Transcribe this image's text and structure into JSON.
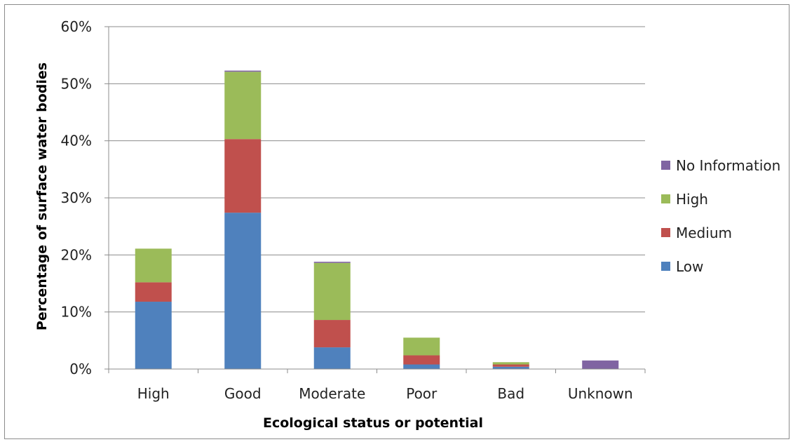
{
  "chart_data": {
    "type": "bar",
    "stacked": true,
    "title": "",
    "xlabel": "Ecological status or potential",
    "ylabel": "Percentage of surface water bodies",
    "categories": [
      "High",
      "Good",
      "Moderate",
      "Poor",
      "Bad",
      "Unknown"
    ],
    "ylim": [
      0,
      60
    ],
    "yticks": [
      0,
      10,
      20,
      30,
      40,
      50,
      60
    ],
    "ytick_labels": [
      "0%",
      "10%",
      "20%",
      "30%",
      "40%",
      "50%",
      "60%"
    ],
    "grid": true,
    "legend_position": "right",
    "series": [
      {
        "name": "Low",
        "color": "#4f81bd",
        "values": [
          11.8,
          27.4,
          3.8,
          0.8,
          0.4,
          0
        ]
      },
      {
        "name": "Medium",
        "color": "#c0504d",
        "values": [
          3.4,
          12.9,
          4.8,
          1.6,
          0.4,
          0
        ]
      },
      {
        "name": "High",
        "color": "#9bbb59",
        "values": [
          5.9,
          11.8,
          10.0,
          3.1,
          0.4,
          0
        ]
      },
      {
        "name": "No Information",
        "color": "#8064a2",
        "values": [
          0,
          0.2,
          0.2,
          0,
          0,
          1.5
        ]
      }
    ]
  }
}
